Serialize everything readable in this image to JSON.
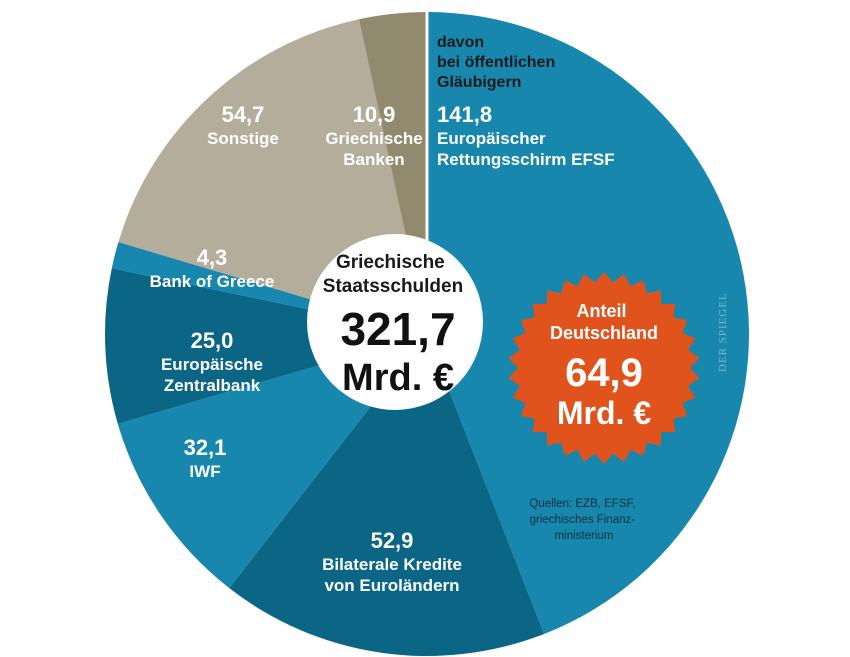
{
  "chart_data": {
    "type": "pie",
    "title": "Griechische Staatsschulden",
    "total": {
      "value": "321,7",
      "unit": "Mrd. €"
    },
    "slices": [
      {
        "value": "141,8",
        "label_lines": [
          "Europäischer",
          "Rettungsschirm EFSF"
        ],
        "num": 141.8,
        "color": "#1787ad"
      },
      {
        "value": "52,9",
        "label_lines": [
          "Bilaterale Kredite",
          "von Euroländern"
        ],
        "num": 52.9,
        "color": "#0b6584"
      },
      {
        "value": "32,1",
        "label_lines": [
          "IWF"
        ],
        "num": 32.1,
        "color": "#1787ad"
      },
      {
        "value": "25,0",
        "label_lines": [
          "Europäische",
          "Zentralbank"
        ],
        "num": 25.0,
        "color": "#0b6584"
      },
      {
        "value": "4,3",
        "label_lines": [
          "Bank of Greece"
        ],
        "num": 4.3,
        "color": "#1787ad"
      },
      {
        "value": "54,7",
        "label_lines": [
          "Sonstige"
        ],
        "num": 54.7,
        "color": "#b5ad9b"
      },
      {
        "value": "10,9",
        "label_lines": [
          "Griechische",
          "Banken"
        ],
        "num": 10.9,
        "color": "#918a6f"
      }
    ],
    "annotation": [
      "davon",
      "bei öffentlichen",
      "Gläubigern"
    ],
    "badge": {
      "title_lines": [
        "Anteil",
        "Deutschland"
      ],
      "value": "64,9",
      "unit": "Mrd. €",
      "color": "#e0531c"
    },
    "source_lines": [
      "Quellen: EZB, EFSF,",
      "griechisches Finanz-",
      "ministerium"
    ],
    "brand": "DER SPIEGEL"
  }
}
